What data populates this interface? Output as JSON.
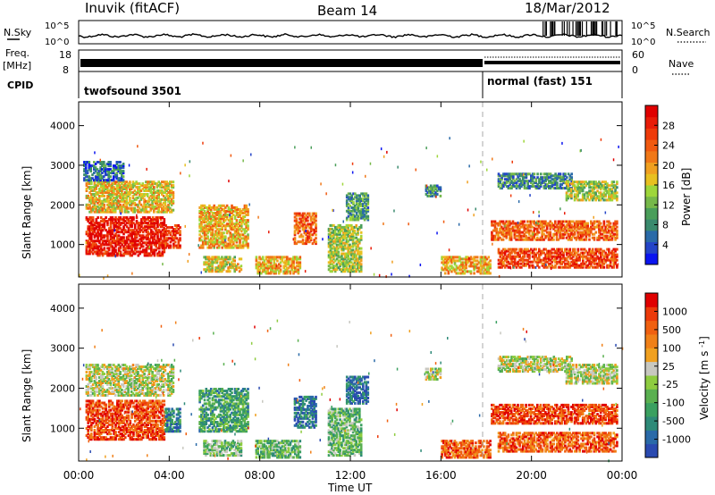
{
  "header": {
    "station": "Inuvik (fitACF)",
    "beam": "Beam 14",
    "date": "18/Mar/2012"
  },
  "left_labels": {
    "nsky": "N.Sky",
    "freq_line1": "Freq.",
    "freq_line2": "[MHz]",
    "cpid": "CPID"
  },
  "right_labels": {
    "nsearch": "N.Search",
    "nave": "Nave"
  },
  "noise_panel": {
    "tick_top": "10^5",
    "tick_bottom": "10^0",
    "right_tick_top": "10^5",
    "right_tick_bottom": "10^0"
  },
  "freq_panel": {
    "tick_top": "18",
    "tick_bottom": "8",
    "right_tick_top": "60",
    "right_tick_bottom": "0"
  },
  "cpid_panel": {
    "mode1": "twofsound 3501",
    "mode2": "normal (fast) 151",
    "mode_change_time": 18.0
  },
  "chart_data": [
    {
      "type": "heatmap",
      "name": "power",
      "ylabel": "Slant Range [km]",
      "yticks": [
        1000,
        2000,
        3000,
        4000
      ],
      "ylim": [
        180,
        4600
      ],
      "xlim": [
        0,
        24
      ],
      "colorbar": {
        "label": "Power [dB]",
        "ticks": [
          "4",
          "8",
          "12",
          "16",
          "20",
          "24",
          "28"
        ],
        "colors": [
          "#0a14f0",
          "#2444c8",
          "#2a6aa8",
          "#3a8a6e",
          "#4a9e5a",
          "#76b84a",
          "#9ed63a",
          "#e8c020",
          "#f0a020",
          "#f07818",
          "#f05a10",
          "#ee3a0a",
          "#e81c08",
          "#e00000"
        ]
      },
      "regions": [
        {
          "t0": 0.3,
          "t1": 3.8,
          "r0": 700,
          "r1": 1700,
          "level": 0.92
        },
        {
          "t0": 0.3,
          "t1": 4.2,
          "r0": 1800,
          "r1": 2600,
          "level": 0.55
        },
        {
          "t0": 0.2,
          "t1": 2.0,
          "r0": 2600,
          "r1": 3100,
          "level": 0.2
        },
        {
          "t0": 3.8,
          "t1": 4.5,
          "r0": 900,
          "r1": 1500,
          "level": 0.85
        },
        {
          "t0": 5.3,
          "t1": 7.5,
          "r0": 900,
          "r1": 2000,
          "level": 0.6
        },
        {
          "t0": 5.5,
          "t1": 7.2,
          "r0": 300,
          "r1": 700,
          "level": 0.5
        },
        {
          "t0": 7.8,
          "t1": 9.8,
          "r0": 250,
          "r1": 700,
          "level": 0.6
        },
        {
          "t0": 9.5,
          "t1": 10.5,
          "r0": 1000,
          "r1": 1800,
          "level": 0.75
        },
        {
          "t0": 11.0,
          "t1": 12.5,
          "r0": 300,
          "r1": 1500,
          "level": 0.45
        },
        {
          "t0": 11.8,
          "t1": 12.8,
          "r0": 1600,
          "r1": 2300,
          "level": 0.3
        },
        {
          "t0": 15.3,
          "t1": 16.0,
          "r0": 2200,
          "r1": 2500,
          "level": 0.25
        },
        {
          "t0": 16.0,
          "t1": 18.2,
          "r0": 250,
          "r1": 700,
          "level": 0.6
        },
        {
          "t0": 18.5,
          "t1": 21.8,
          "r0": 2400,
          "r1": 2800,
          "level": 0.25
        },
        {
          "t0": 18.2,
          "t1": 23.8,
          "r0": 1100,
          "r1": 1600,
          "level": 0.75
        },
        {
          "t0": 18.5,
          "t1": 23.8,
          "r0": 400,
          "r1": 900,
          "level": 0.8
        },
        {
          "t0": 21.5,
          "t1": 23.8,
          "r0": 2100,
          "r1": 2600,
          "level": 0.45
        }
      ]
    },
    {
      "type": "heatmap",
      "name": "velocity",
      "ylabel": "Slant Range [km]",
      "yticks": [
        1000,
        2000,
        3000,
        4000
      ],
      "ylim": [
        180,
        4600
      ],
      "xlim": [
        0,
        24
      ],
      "colorbar": {
        "label": "Velocity [m s^-1]",
        "ticks": [
          "1000",
          "500",
          "100",
          "25",
          "-25",
          "-100",
          "-500",
          "-1000"
        ],
        "colors": [
          "#2a4ab0",
          "#2a6aa8",
          "#2e8a78",
          "#3aa060",
          "#5ab050",
          "#8ecc40",
          "#c8c8c0",
          "#f0a020",
          "#f08018",
          "#f06010",
          "#ec3a0a",
          "#e00000"
        ]
      },
      "regions": [
        {
          "t0": 0.3,
          "t1": 3.8,
          "r0": 700,
          "r1": 1700,
          "level": 0.85
        },
        {
          "t0": 0.3,
          "t1": 4.2,
          "r0": 1800,
          "r1": 2600,
          "level": 0.5
        },
        {
          "t0": 3.8,
          "t1": 4.5,
          "r0": 900,
          "r1": 1500,
          "level": 0.2
        },
        {
          "t0": 5.3,
          "t1": 7.5,
          "r0": 900,
          "r1": 2000,
          "level": 0.3
        },
        {
          "t0": 5.5,
          "t1": 7.2,
          "r0": 300,
          "r1": 700,
          "level": 0.4
        },
        {
          "t0": 7.8,
          "t1": 9.8,
          "r0": 250,
          "r1": 700,
          "level": 0.35
        },
        {
          "t0": 9.5,
          "t1": 10.5,
          "r0": 1000,
          "r1": 1800,
          "level": 0.15
        },
        {
          "t0": 11.0,
          "t1": 12.5,
          "r0": 300,
          "r1": 1500,
          "level": 0.38
        },
        {
          "t0": 11.8,
          "t1": 12.8,
          "r0": 1600,
          "r1": 2300,
          "level": 0.15
        },
        {
          "t0": 15.3,
          "t1": 16.0,
          "r0": 2200,
          "r1": 2500,
          "level": 0.5
        },
        {
          "t0": 16.0,
          "t1": 18.2,
          "r0": 250,
          "r1": 700,
          "level": 0.8
        },
        {
          "t0": 18.5,
          "t1": 21.8,
          "r0": 2400,
          "r1": 2800,
          "level": 0.5
        },
        {
          "t0": 18.2,
          "t1": 23.8,
          "r0": 1100,
          "r1": 1600,
          "level": 0.85
        },
        {
          "t0": 18.5,
          "t1": 23.8,
          "r0": 400,
          "r1": 900,
          "level": 0.8
        },
        {
          "t0": 21.5,
          "t1": 23.8,
          "r0": 2100,
          "r1": 2600,
          "level": 0.5
        }
      ]
    }
  ],
  "x_axis": {
    "label": "Time UT",
    "ticks": [
      "00:00",
      "04:00",
      "08:00",
      "12:00",
      "16:00",
      "20:00",
      "00:00"
    ],
    "tick_values": [
      0,
      4,
      8,
      12,
      16,
      20,
      24
    ]
  }
}
